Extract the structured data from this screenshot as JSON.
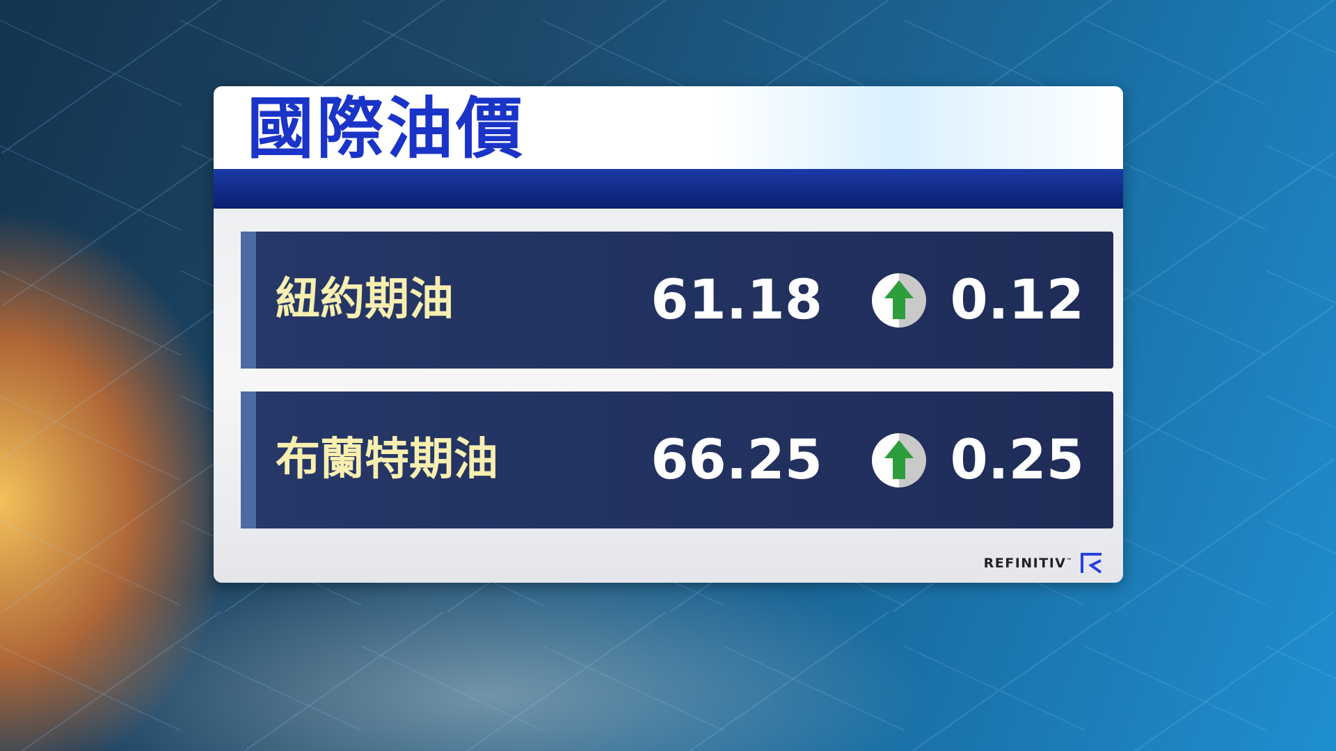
{
  "title": "國際油價",
  "rows": [
    {
      "label": "紐約期油",
      "price": "61.18",
      "direction": "up",
      "change": "0.12",
      "icon": "up-arrow-icon"
    },
    {
      "label": "布蘭特期油",
      "price": "66.25",
      "direction": "up",
      "change": "0.25",
      "icon": "up-arrow-icon"
    }
  ],
  "brand": {
    "name": "REFINITIV",
    "tm": "™"
  },
  "colors": {
    "title": "#1a34c8",
    "label": "#f8efb0",
    "up": "#2e9e3c",
    "row_bg": "#263868"
  }
}
